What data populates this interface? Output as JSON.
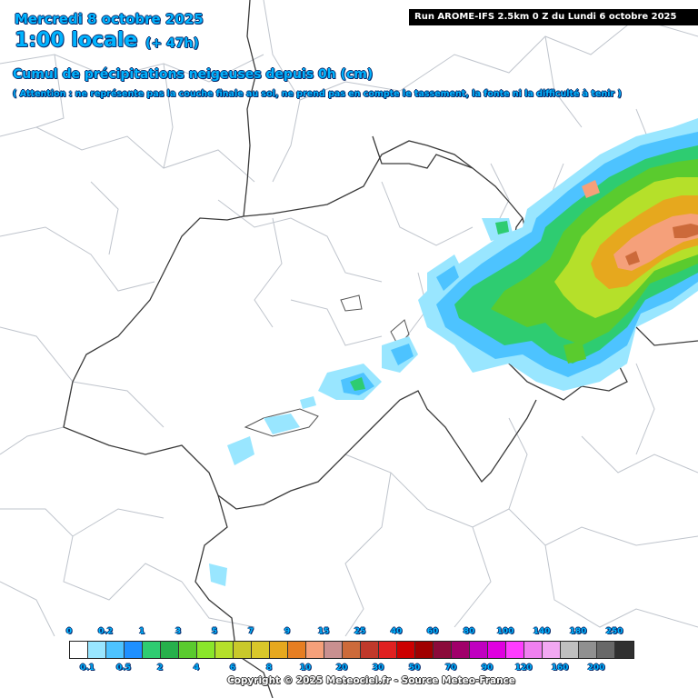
{
  "header": {
    "date": "Mercredi 8 octobre 2025",
    "time": "1:00 locale",
    "lead": "(+ 47h)",
    "run": "Run AROME-IFS 2.5km 0 Z du Lundi 6 octobre 2025"
  },
  "title": "Cumul de précipitations neigeuses depuis 0h (cm)",
  "note": "( Attention : ne représente pas la couche finale au sol, ne prend pas en compte le tassement, la fonte ni la difficulté à tenir )",
  "legend": {
    "unit": "cm",
    "top_labels": [
      "0",
      "0.2",
      "1",
      "3",
      "5",
      "7",
      "9",
      "15",
      "25",
      "40",
      "60",
      "80",
      "100",
      "140",
      "180",
      "250"
    ],
    "bottom_labels": [
      "0.1",
      "0.5",
      "2",
      "4",
      "6",
      "8",
      "10",
      "20",
      "30",
      "50",
      "70",
      "90",
      "120",
      "160",
      "200"
    ],
    "colors": [
      "#ffffff",
      "#99e6ff",
      "#4dc3ff",
      "#1e90ff",
      "#2ecc71",
      "#27b04b",
      "#5acb2e",
      "#8ae62a",
      "#b5e02a",
      "#c9c92a",
      "#d9c72a",
      "#e6a81e",
      "#e67e22",
      "#f5a07a",
      "#c99090",
      "#cc6a3a",
      "#c0392b",
      "#e02020",
      "#cc0000",
      "#a00000",
      "#8b0a3a",
      "#a0006a",
      "#c000c0",
      "#e000e0",
      "#ff3cff",
      "#f080f0",
      "#f2a8f2",
      "#c0c0c0",
      "#909090",
      "#686868",
      "#303030"
    ]
  },
  "copyright": "Copyright © 2025 Meteociel.fr - Source Meteo-France"
}
